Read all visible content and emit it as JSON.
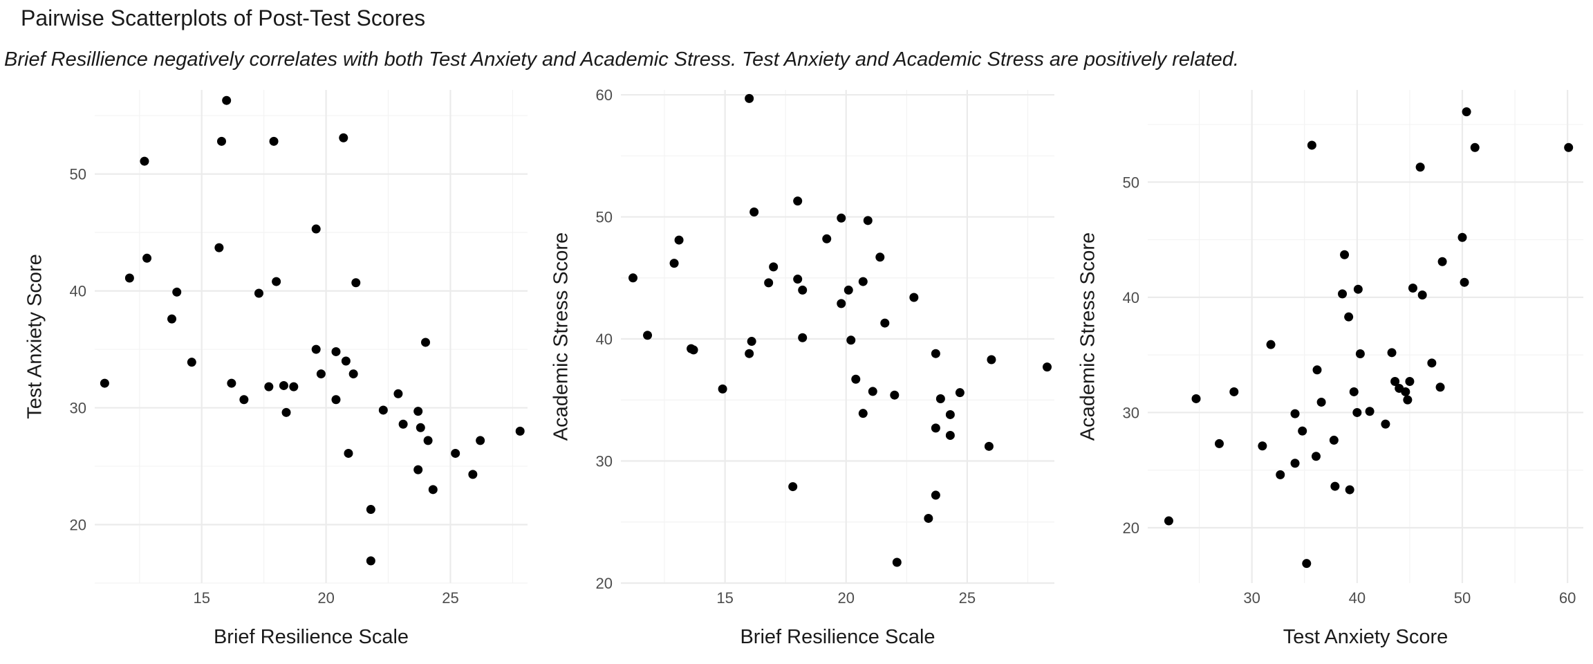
{
  "title": "Pairwise Scatterplots of Post-Test Scores",
  "subtitle": "Brief Resillience negatively correlates with both Test Anxiety and Academic Stress. Test Anxiety and Academic Stress are positively related.",
  "chart_data": [
    {
      "type": "scatter",
      "xlabel": "Brief Resilience Scale",
      "ylabel": "Test Anxiety Score",
      "xlim": [
        10.7,
        28.1
      ],
      "ylim": [
        15,
        57.2
      ],
      "xticks": [
        15,
        20,
        25
      ],
      "yticks": [
        20,
        30,
        40,
        50
      ],
      "grid": true,
      "points": [
        {
          "x": 11.1,
          "y": 32.1
        },
        {
          "x": 12.1,
          "y": 41.1
        },
        {
          "x": 12.7,
          "y": 51.1
        },
        {
          "x": 12.8,
          "y": 42.8
        },
        {
          "x": 13.8,
          "y": 37.6
        },
        {
          "x": 14.0,
          "y": 39.9
        },
        {
          "x": 14.6,
          "y": 33.9
        },
        {
          "x": 15.7,
          "y": 43.7
        },
        {
          "x": 15.8,
          "y": 52.8
        },
        {
          "x": 16.0,
          "y": 56.3
        },
        {
          "x": 16.2,
          "y": 32.1
        },
        {
          "x": 16.7,
          "y": 30.7
        },
        {
          "x": 17.3,
          "y": 39.8
        },
        {
          "x": 17.7,
          "y": 31.8
        },
        {
          "x": 17.9,
          "y": 52.8
        },
        {
          "x": 18.0,
          "y": 40.8
        },
        {
          "x": 18.3,
          "y": 31.9
        },
        {
          "x": 18.4,
          "y": 29.6
        },
        {
          "x": 18.7,
          "y": 31.8
        },
        {
          "x": 19.6,
          "y": 45.3
        },
        {
          "x": 19.6,
          "y": 35.0
        },
        {
          "x": 19.8,
          "y": 32.9
        },
        {
          "x": 20.4,
          "y": 34.8
        },
        {
          "x": 20.4,
          "y": 30.7
        },
        {
          "x": 20.7,
          "y": 53.1
        },
        {
          "x": 20.8,
          "y": 34.0
        },
        {
          "x": 20.9,
          "y": 26.1
        },
        {
          "x": 21.1,
          "y": 32.9
        },
        {
          "x": 21.2,
          "y": 40.7
        },
        {
          "x": 21.8,
          "y": 21.3
        },
        {
          "x": 21.8,
          "y": 16.9
        },
        {
          "x": 22.3,
          "y": 29.8
        },
        {
          "x": 22.9,
          "y": 31.2
        },
        {
          "x": 23.1,
          "y": 28.6
        },
        {
          "x": 23.7,
          "y": 29.7
        },
        {
          "x": 23.7,
          "y": 24.7
        },
        {
          "x": 23.8,
          "y": 28.3
        },
        {
          "x": 24.0,
          "y": 35.6
        },
        {
          "x": 24.1,
          "y": 27.2
        },
        {
          "x": 24.3,
          "y": 23.0
        },
        {
          "x": 25.2,
          "y": 26.1
        },
        {
          "x": 25.9,
          "y": 24.3
        },
        {
          "x": 26.2,
          "y": 27.2
        },
        {
          "x": 27.8,
          "y": 28.0
        }
      ]
    },
    {
      "type": "scatter",
      "xlabel": "Brief Resilience Scale",
      "ylabel": "Academic Stress Score",
      "xlim": [
        10.7,
        28.6
      ],
      "ylim": [
        20,
        60.4
      ],
      "xticks": [
        15,
        20,
        25
      ],
      "yticks": [
        20,
        30,
        40,
        50,
        60
      ],
      "grid": true,
      "points": [
        {
          "x": 11.2,
          "y": 45.0
        },
        {
          "x": 11.8,
          "y": 40.3
        },
        {
          "x": 12.9,
          "y": 46.2
        },
        {
          "x": 13.1,
          "y": 48.1
        },
        {
          "x": 13.6,
          "y": 39.2
        },
        {
          "x": 13.7,
          "y": 39.1
        },
        {
          "x": 14.9,
          "y": 35.9
        },
        {
          "x": 16.0,
          "y": 59.7
        },
        {
          "x": 16.0,
          "y": 38.8
        },
        {
          "x": 16.1,
          "y": 39.8
        },
        {
          "x": 16.2,
          "y": 50.4
        },
        {
          "x": 16.8,
          "y": 44.6
        },
        {
          "x": 17.0,
          "y": 45.9
        },
        {
          "x": 17.8,
          "y": 27.9
        },
        {
          "x": 18.0,
          "y": 51.3
        },
        {
          "x": 18.0,
          "y": 44.9
        },
        {
          "x": 18.2,
          "y": 44.0
        },
        {
          "x": 18.2,
          "y": 40.1
        },
        {
          "x": 19.2,
          "y": 48.2
        },
        {
          "x": 19.8,
          "y": 42.9
        },
        {
          "x": 19.8,
          "y": 49.9
        },
        {
          "x": 20.1,
          "y": 44.0
        },
        {
          "x": 20.2,
          "y": 39.9
        },
        {
          "x": 20.4,
          "y": 36.7
        },
        {
          "x": 20.7,
          "y": 44.7
        },
        {
          "x": 20.7,
          "y": 33.9
        },
        {
          "x": 20.9,
          "y": 49.7
        },
        {
          "x": 21.1,
          "y": 35.7
        },
        {
          "x": 21.4,
          "y": 46.7
        },
        {
          "x": 21.6,
          "y": 41.3
        },
        {
          "x": 22.0,
          "y": 35.4
        },
        {
          "x": 22.1,
          "y": 21.7
        },
        {
          "x": 22.8,
          "y": 43.4
        },
        {
          "x": 23.4,
          "y": 25.3
        },
        {
          "x": 23.7,
          "y": 38.8
        },
        {
          "x": 23.7,
          "y": 32.7
        },
        {
          "x": 23.7,
          "y": 27.2
        },
        {
          "x": 23.9,
          "y": 35.1
        },
        {
          "x": 24.3,
          "y": 33.8
        },
        {
          "x": 24.3,
          "y": 32.1
        },
        {
          "x": 24.7,
          "y": 35.6
        },
        {
          "x": 25.9,
          "y": 31.2
        },
        {
          "x": 26.0,
          "y": 38.3
        },
        {
          "x": 28.3,
          "y": 37.7
        }
      ]
    },
    {
      "type": "scatter",
      "xlabel": "Test Anxiety Score",
      "ylabel": "Academic Stress Score",
      "xlim": [
        20.1,
        61.5
      ],
      "ylim": [
        15.2,
        58
      ],
      "xticks": [
        30,
        40,
        50,
        60
      ],
      "yticks": [
        20,
        30,
        40,
        50
      ],
      "grid": true,
      "points": [
        {
          "x": 22.1,
          "y": 20.6
        },
        {
          "x": 24.7,
          "y": 31.2
        },
        {
          "x": 26.9,
          "y": 27.3
        },
        {
          "x": 28.3,
          "y": 31.8
        },
        {
          "x": 31.0,
          "y": 27.1
        },
        {
          "x": 31.8,
          "y": 35.9
        },
        {
          "x": 32.7,
          "y": 24.6
        },
        {
          "x": 34.1,
          "y": 25.6
        },
        {
          "x": 34.1,
          "y": 29.9
        },
        {
          "x": 34.8,
          "y": 28.4
        },
        {
          "x": 35.2,
          "y": 16.9
        },
        {
          "x": 35.7,
          "y": 53.2
        },
        {
          "x": 36.1,
          "y": 26.2
        },
        {
          "x": 36.2,
          "y": 33.7
        },
        {
          "x": 36.6,
          "y": 30.9
        },
        {
          "x": 37.8,
          "y": 27.6
        },
        {
          "x": 37.9,
          "y": 23.6
        },
        {
          "x": 38.6,
          "y": 40.3
        },
        {
          "x": 38.8,
          "y": 43.7
        },
        {
          "x": 39.2,
          "y": 38.3
        },
        {
          "x": 39.3,
          "y": 23.3
        },
        {
          "x": 39.7,
          "y": 31.8
        },
        {
          "x": 40.0,
          "y": 30.0
        },
        {
          "x": 40.1,
          "y": 40.7
        },
        {
          "x": 40.3,
          "y": 35.1
        },
        {
          "x": 41.2,
          "y": 30.1
        },
        {
          "x": 42.7,
          "y": 29.0
        },
        {
          "x": 43.3,
          "y": 35.2
        },
        {
          "x": 43.6,
          "y": 32.7
        },
        {
          "x": 44.0,
          "y": 32.1
        },
        {
          "x": 44.6,
          "y": 31.8
        },
        {
          "x": 44.8,
          "y": 31.1
        },
        {
          "x": 45.0,
          "y": 32.7
        },
        {
          "x": 45.3,
          "y": 40.8
        },
        {
          "x": 46.0,
          "y": 51.3
        },
        {
          "x": 46.2,
          "y": 40.2
        },
        {
          "x": 47.1,
          "y": 34.3
        },
        {
          "x": 47.9,
          "y": 32.2
        },
        {
          "x": 48.1,
          "y": 43.1
        },
        {
          "x": 50.0,
          "y": 45.2
        },
        {
          "x": 50.2,
          "y": 41.3
        },
        {
          "x": 50.4,
          "y": 56.1
        },
        {
          "x": 51.2,
          "y": 53.0
        },
        {
          "x": 60.1,
          "y": 53.0
        }
      ]
    }
  ]
}
